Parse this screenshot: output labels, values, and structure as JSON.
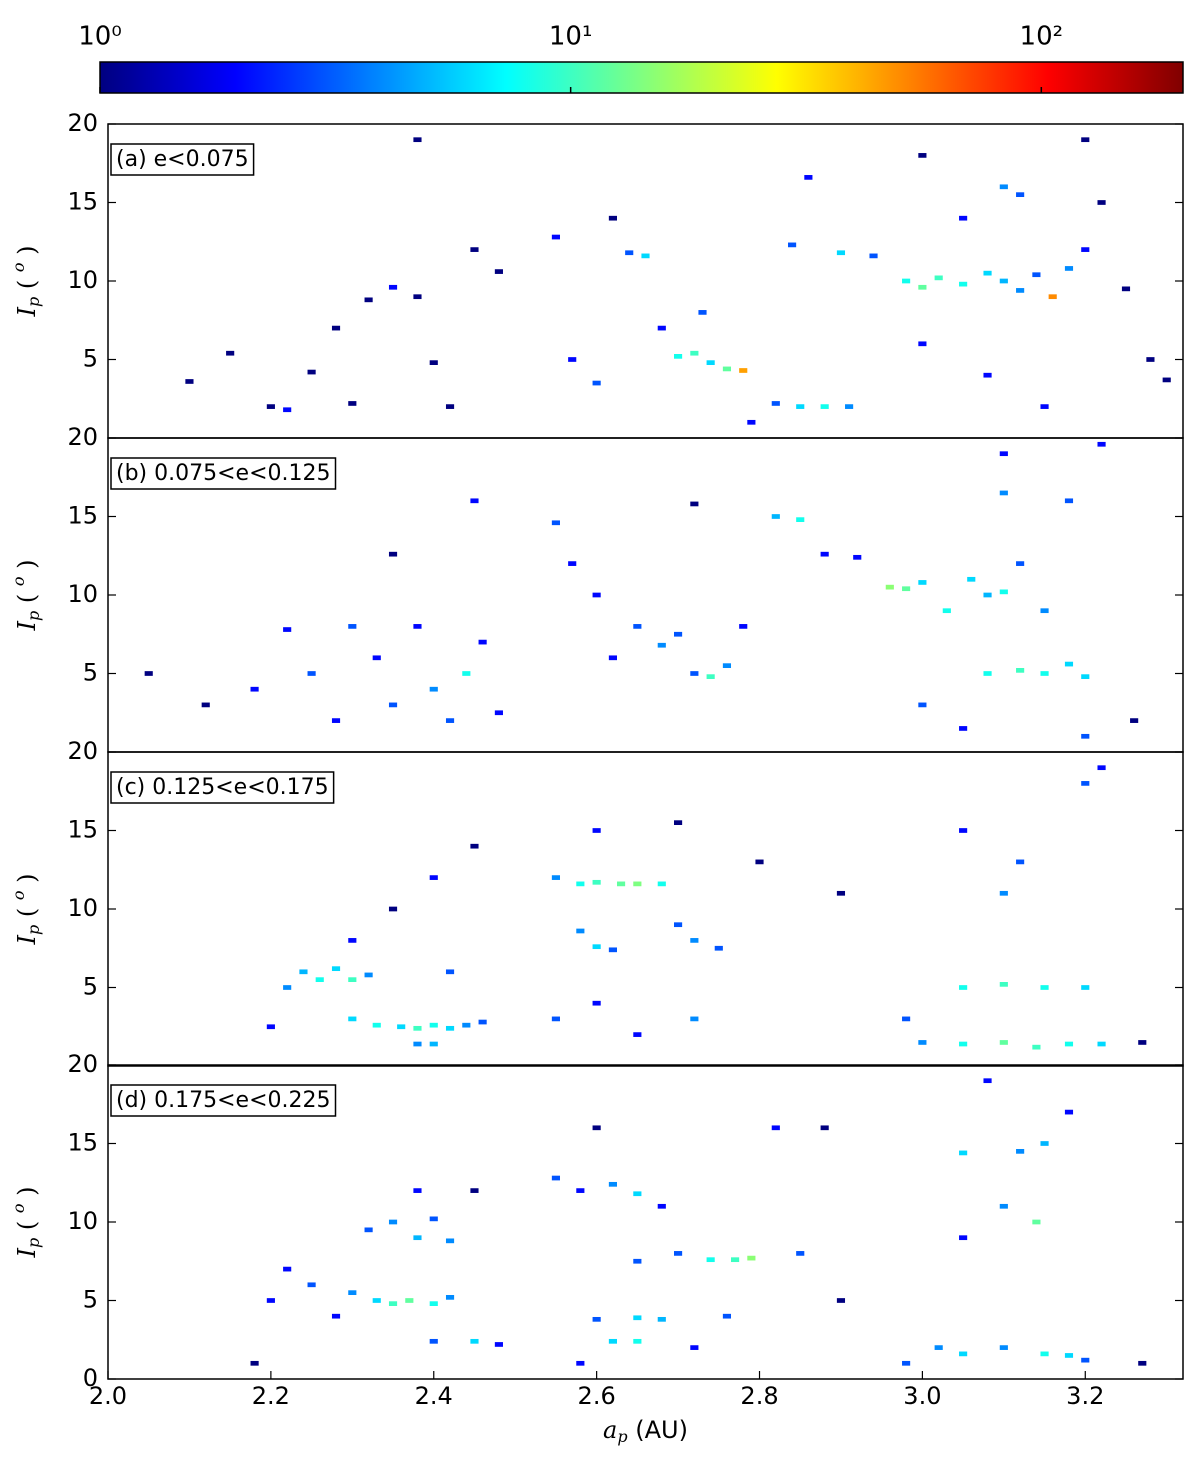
{
  "chart_data": [
    {
      "type": "heatmap",
      "title": "(a) e<0.075",
      "ylabel": {
        "text": "I",
        "sub": "p",
        "unit": " ( ",
        "unit_sup": "o",
        "unit_end": " )"
      },
      "xlim": [
        2.0,
        3.32
      ],
      "ylim": [
        0,
        20
      ],
      "yticks": [
        5,
        10,
        15,
        20
      ],
      "bin_width": {
        "x": 0.01,
        "y": 0.3
      },
      "colorbar": {
        "cmap": "jet",
        "log": true,
        "lim": [
          1,
          200
        ],
        "ticks": [
          {
            "value": 1,
            "label": "10⁰"
          },
          {
            "value": 10,
            "label": "10¹"
          },
          {
            "value": 100,
            "label": "10²"
          }
        ]
      },
      "cells": [
        [
          2.1,
          3.6,
          1
        ],
        [
          2.15,
          5.4,
          1
        ],
        [
          2.2,
          2.0,
          1
        ],
        [
          2.22,
          1.8,
          2
        ],
        [
          2.25,
          4.2,
          1
        ],
        [
          2.28,
          7.0,
          1
        ],
        [
          2.3,
          2.2,
          1
        ],
        [
          2.32,
          8.8,
          1
        ],
        [
          2.35,
          9.6,
          2
        ],
        [
          2.38,
          9.0,
          1
        ],
        [
          2.4,
          4.8,
          1
        ],
        [
          2.42,
          2.0,
          1
        ],
        [
          2.45,
          12.0,
          1
        ],
        [
          2.48,
          10.6,
          1
        ],
        [
          2.55,
          12.8,
          2
        ],
        [
          2.57,
          5.0,
          2
        ],
        [
          2.6,
          3.5,
          3
        ],
        [
          2.62,
          14.0,
          1
        ],
        [
          2.64,
          11.8,
          3
        ],
        [
          2.66,
          11.6,
          6
        ],
        [
          2.68,
          7.0,
          2
        ],
        [
          2.7,
          5.2,
          8
        ],
        [
          2.72,
          5.4,
          10
        ],
        [
          2.74,
          4.8,
          6
        ],
        [
          2.76,
          4.4,
          12
        ],
        [
          2.78,
          4.3,
          45
        ],
        [
          2.73,
          8.0,
          3
        ],
        [
          2.79,
          1.0,
          2
        ],
        [
          2.82,
          2.2,
          3
        ],
        [
          2.85,
          2.0,
          6
        ],
        [
          2.88,
          2.0,
          8
        ],
        [
          2.91,
          2.0,
          4
        ],
        [
          2.84,
          12.3,
          3
        ],
        [
          2.86,
          16.6,
          2
        ],
        [
          2.9,
          11.8,
          6
        ],
        [
          2.94,
          11.6,
          3
        ],
        [
          2.98,
          10.0,
          8
        ],
        [
          3.0,
          9.6,
          12
        ],
        [
          3.02,
          10.2,
          10
        ],
        [
          3.05,
          9.8,
          8
        ],
        [
          3.08,
          10.5,
          6
        ],
        [
          3.1,
          10.0,
          5
        ],
        [
          3.12,
          9.4,
          4
        ],
        [
          3.14,
          10.4,
          3
        ],
        [
          3.16,
          9.0,
          50
        ],
        [
          3.18,
          10.8,
          4
        ],
        [
          3.1,
          16.0,
          4
        ],
        [
          3.12,
          15.5,
          3
        ],
        [
          3.05,
          14.0,
          2
        ],
        [
          3.0,
          6.0,
          2
        ],
        [
          3.08,
          4.0,
          2
        ],
        [
          3.15,
          2.0,
          2
        ],
        [
          3.2,
          12.0,
          2
        ],
        [
          3.22,
          15.0,
          1
        ],
        [
          3.25,
          9.5,
          1
        ],
        [
          3.28,
          5.0,
          1
        ],
        [
          3.3,
          3.7,
          1
        ],
        [
          3.0,
          18.0,
          1
        ],
        [
          3.2,
          19.0,
          1
        ],
        [
          2.38,
          19.0,
          1
        ]
      ]
    },
    {
      "type": "heatmap",
      "title": "(b) 0.075<e<0.125",
      "ylabel": {
        "text": "I",
        "sub": "p",
        "unit": " ( ",
        "unit_sup": "o",
        "unit_end": " )"
      },
      "xlim": [
        2.0,
        3.32
      ],
      "ylim": [
        0,
        20
      ],
      "yticks": [
        5,
        10,
        15,
        20
      ],
      "bin_width": {
        "x": 0.01,
        "y": 0.3
      },
      "cells": [
        [
          2.05,
          5.0,
          1
        ],
        [
          2.12,
          3.0,
          1
        ],
        [
          2.18,
          4.0,
          2
        ],
        [
          2.22,
          7.8,
          2
        ],
        [
          2.25,
          5.0,
          3
        ],
        [
          2.28,
          2.0,
          2
        ],
        [
          2.3,
          8.0,
          3
        ],
        [
          2.33,
          6.0,
          2
        ],
        [
          2.35,
          3.0,
          3
        ],
        [
          2.38,
          8.0,
          2
        ],
        [
          2.4,
          4.0,
          4
        ],
        [
          2.42,
          2.0,
          3
        ],
        [
          2.44,
          5.0,
          8
        ],
        [
          2.46,
          7.0,
          2
        ],
        [
          2.48,
          2.5,
          2
        ],
        [
          2.35,
          12.6,
          1
        ],
        [
          2.45,
          16.0,
          2
        ],
        [
          2.55,
          14.6,
          3
        ],
        [
          2.57,
          12.0,
          2
        ],
        [
          2.6,
          10.0,
          2
        ],
        [
          2.62,
          6.0,
          2
        ],
        [
          2.65,
          8.0,
          3
        ],
        [
          2.68,
          6.8,
          4
        ],
        [
          2.7,
          7.5,
          3
        ],
        [
          2.72,
          5.0,
          3
        ],
        [
          2.74,
          4.8,
          10
        ],
        [
          2.76,
          5.5,
          4
        ],
        [
          2.78,
          8.0,
          2
        ],
        [
          2.72,
          15.8,
          1
        ],
        [
          2.82,
          15.0,
          5
        ],
        [
          2.85,
          14.8,
          8
        ],
        [
          2.88,
          12.6,
          2
        ],
        [
          2.92,
          12.4,
          2
        ],
        [
          2.96,
          10.5,
          15
        ],
        [
          2.98,
          10.4,
          12
        ],
        [
          3.0,
          10.8,
          6
        ],
        [
          3.03,
          9.0,
          8
        ],
        [
          3.06,
          11.0,
          6
        ],
        [
          3.08,
          10.0,
          5
        ],
        [
          3.1,
          10.2,
          8
        ],
        [
          3.12,
          12.0,
          3
        ],
        [
          3.15,
          9.0,
          4
        ],
        [
          3.1,
          16.5,
          4
        ],
        [
          3.18,
          16.0,
          3
        ],
        [
          3.08,
          5.0,
          8
        ],
        [
          3.12,
          5.2,
          10
        ],
        [
          3.15,
          5.0,
          8
        ],
        [
          3.18,
          5.6,
          6
        ],
        [
          3.2,
          4.8,
          6
        ],
        [
          3.0,
          3.0,
          3
        ],
        [
          3.05,
          1.5,
          2
        ],
        [
          3.2,
          1.0,
          3
        ],
        [
          3.1,
          19.0,
          2
        ],
        [
          3.22,
          19.6,
          2
        ],
        [
          3.26,
          2.0,
          1
        ]
      ]
    },
    {
      "type": "heatmap",
      "title": "(c) 0.125<e<0.175",
      "ylabel": {
        "text": "I",
        "sub": "p",
        "unit": " ( ",
        "unit_sup": "o",
        "unit_end": " )"
      },
      "xlim": [
        2.0,
        3.32
      ],
      "ylim": [
        0,
        20
      ],
      "yticks": [
        5,
        10,
        15,
        20
      ],
      "bin_width": {
        "x": 0.01,
        "y": 0.3
      },
      "cells": [
        [
          2.2,
          2.5,
          2
        ],
        [
          2.22,
          5.0,
          4
        ],
        [
          2.24,
          6.0,
          5
        ],
        [
          2.26,
          5.5,
          8
        ],
        [
          2.28,
          6.2,
          6
        ],
        [
          2.3,
          5.5,
          10
        ],
        [
          2.32,
          5.8,
          4
        ],
        [
          2.3,
          3.0,
          6
        ],
        [
          2.33,
          2.6,
          8
        ],
        [
          2.36,
          2.5,
          6
        ],
        [
          2.38,
          2.4,
          10
        ],
        [
          2.4,
          2.6,
          8
        ],
        [
          2.42,
          2.4,
          6
        ],
        [
          2.44,
          2.6,
          4
        ],
        [
          2.46,
          2.8,
          3
        ],
        [
          2.38,
          1.4,
          4
        ],
        [
          2.4,
          1.4,
          5
        ],
        [
          2.3,
          8.0,
          2
        ],
        [
          2.35,
          10.0,
          1
        ],
        [
          2.4,
          12.0,
          2
        ],
        [
          2.45,
          14.0,
          1
        ],
        [
          2.42,
          6.0,
          3
        ],
        [
          2.55,
          12.0,
          4
        ],
        [
          2.58,
          11.6,
          8
        ],
        [
          2.6,
          11.7,
          10
        ],
        [
          2.63,
          11.6,
          12
        ],
        [
          2.65,
          11.6,
          14
        ],
        [
          2.68,
          11.6,
          8
        ],
        [
          2.58,
          8.6,
          4
        ],
        [
          2.6,
          7.6,
          6
        ],
        [
          2.62,
          7.4,
          3
        ],
        [
          2.7,
          9.0,
          3
        ],
        [
          2.72,
          8.0,
          4
        ],
        [
          2.75,
          7.5,
          3
        ],
        [
          2.55,
          3.0,
          3
        ],
        [
          2.6,
          4.0,
          2
        ],
        [
          2.65,
          2.0,
          2
        ],
        [
          2.72,
          3.0,
          4
        ],
        [
          2.6,
          15.0,
          2
        ],
        [
          2.7,
          15.5,
          1
        ],
        [
          2.8,
          13.0,
          1
        ],
        [
          2.9,
          11.0,
          1
        ],
        [
          2.98,
          3.0,
          3
        ],
        [
          3.0,
          1.5,
          4
        ],
        [
          3.05,
          5.0,
          8
        ],
        [
          3.1,
          5.2,
          10
        ],
        [
          3.15,
          5.0,
          8
        ],
        [
          3.2,
          5.0,
          6
        ],
        [
          3.05,
          1.4,
          8
        ],
        [
          3.1,
          1.5,
          12
        ],
        [
          3.14,
          1.2,
          10
        ],
        [
          3.18,
          1.4,
          8
        ],
        [
          3.22,
          1.4,
          6
        ],
        [
          3.1,
          11.0,
          4
        ],
        [
          3.12,
          13.0,
          3
        ],
        [
          3.05,
          15.0,
          2
        ],
        [
          3.2,
          18.0,
          3
        ],
        [
          3.22,
          19.0,
          2
        ],
        [
          3.27,
          1.5,
          1
        ]
      ]
    },
    {
      "type": "heatmap",
      "title": "(d) 0.175<e<0.225",
      "ylabel": {
        "text": "I",
        "sub": "p",
        "unit": " ( ",
        "unit_sup": "o",
        "unit_end": " )"
      },
      "xlabel": {
        "text": "a",
        "sub": "p",
        "unit": " (AU)"
      },
      "xlim": [
        2.0,
        3.32
      ],
      "ylim": [
        0,
        20
      ],
      "yticks": [
        0,
        5,
        10,
        15,
        20
      ],
      "bin_width": {
        "x": 0.01,
        "y": 0.3
      },
      "xticks": [
        {
          "value": 2,
          "label": "2.0"
        },
        2.2,
        2.4,
        2.6,
        2.8,
        {
          "value": 3,
          "label": "3.0"
        },
        3.2
      ],
      "cells": [
        [
          2.18,
          1.0,
          1
        ],
        [
          2.2,
          5.0,
          2
        ],
        [
          2.22,
          7.0,
          2
        ],
        [
          2.25,
          6.0,
          3
        ],
        [
          2.28,
          4.0,
          2
        ],
        [
          2.3,
          5.5,
          4
        ],
        [
          2.33,
          5.0,
          6
        ],
        [
          2.35,
          4.8,
          10
        ],
        [
          2.37,
          5.0,
          12
        ],
        [
          2.4,
          4.8,
          8
        ],
        [
          2.42,
          5.2,
          4
        ],
        [
          2.32,
          9.5,
          3
        ],
        [
          2.35,
          10.0,
          4
        ],
        [
          2.38,
          9.0,
          5
        ],
        [
          2.4,
          10.2,
          3
        ],
        [
          2.42,
          8.8,
          4
        ],
        [
          2.38,
          12.0,
          2
        ],
        [
          2.45,
          12.0,
          1
        ],
        [
          2.4,
          2.4,
          3
        ],
        [
          2.45,
          2.4,
          6
        ],
        [
          2.48,
          2.2,
          2
        ],
        [
          2.55,
          12.8,
          3
        ],
        [
          2.58,
          12.0,
          2
        ],
        [
          2.6,
          16.0,
          1
        ],
        [
          2.62,
          12.4,
          4
        ],
        [
          2.65,
          11.8,
          6
        ],
        [
          2.68,
          11.0,
          2
        ],
        [
          2.65,
          7.5,
          3
        ],
        [
          2.7,
          8.0,
          3
        ],
        [
          2.74,
          7.6,
          8
        ],
        [
          2.77,
          7.6,
          10
        ],
        [
          2.79,
          7.7,
          15
        ],
        [
          2.6,
          3.8,
          3
        ],
        [
          2.65,
          3.9,
          6
        ],
        [
          2.68,
          3.8,
          5
        ],
        [
          2.62,
          2.4,
          6
        ],
        [
          2.65,
          2.4,
          8
        ],
        [
          2.58,
          1.0,
          2
        ],
        [
          2.72,
          2.0,
          2
        ],
        [
          2.76,
          4.0,
          3
        ],
        [
          2.82,
          16.0,
          2
        ],
        [
          2.88,
          16.0,
          1
        ],
        [
          2.85,
          8.0,
          3
        ],
        [
          2.9,
          5.0,
          1
        ],
        [
          2.98,
          1.0,
          3
        ],
        [
          3.02,
          2.0,
          4
        ],
        [
          3.05,
          1.6,
          6
        ],
        [
          3.1,
          2.0,
          4
        ],
        [
          3.15,
          1.6,
          8
        ],
        [
          3.18,
          1.5,
          6
        ],
        [
          3.2,
          1.2,
          3
        ],
        [
          3.05,
          14.4,
          6
        ],
        [
          3.12,
          14.5,
          4
        ],
        [
          3.15,
          15.0,
          5
        ],
        [
          3.14,
          10.0,
          12
        ],
        [
          3.1,
          11.0,
          4
        ],
        [
          3.05,
          9.0,
          2
        ],
        [
          3.18,
          17.0,
          2
        ],
        [
          3.27,
          1.0,
          1
        ],
        [
          3.08,
          19.0,
          2
        ]
      ]
    }
  ]
}
